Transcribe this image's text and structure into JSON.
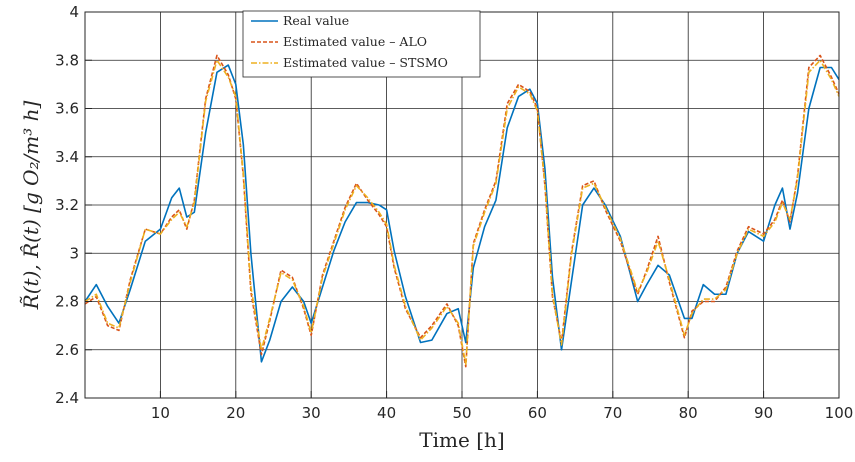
{
  "chart_data": {
    "type": "line",
    "xlabel": "Time [h]",
    "ylabel_html": "R̃(t), R̂(t) [g O₂/m³ h]",
    "xlim": [
      0,
      100
    ],
    "ylim": [
      2.4,
      4.0
    ],
    "xticks": [
      10,
      20,
      30,
      40,
      50,
      60,
      70,
      80,
      90,
      100
    ],
    "xtick_labels": [
      "10",
      "20",
      "30",
      "40",
      "50",
      "60",
      "70",
      "80",
      "90",
      "100"
    ],
    "yticks": [
      2.4,
      2.6,
      2.8,
      3.0,
      3.2,
      3.4,
      3.6,
      3.8,
      4.0
    ],
    "ytick_labels": [
      "2.4",
      "2.6",
      "2.8",
      "3",
      "3.2",
      "3.4",
      "3.6",
      "3.8",
      "4"
    ],
    "grid": true,
    "legend_placement": "top-left",
    "series": [
      {
        "name": "Real value",
        "color": "#0072BD",
        "style": "solid",
        "x": [
          0,
          1.5,
          3,
          4.5,
          6,
          8,
          10,
          11.5,
          12.5,
          13.5,
          14.5,
          16,
          17.5,
          19,
          20,
          21,
          22,
          23.4,
          24.5,
          26,
          27.5,
          29,
          30,
          31.5,
          33,
          34.5,
          36,
          37.5,
          39,
          40,
          41,
          42.5,
          44.5,
          46,
          48,
          49.5,
          50.5,
          51.5,
          53,
          54.5,
          56,
          57.5,
          59,
          60,
          61,
          62,
          63.2,
          64.5,
          66,
          67.5,
          69,
          71,
          73.3,
          74.5,
          76,
          77.5,
          79.5,
          80.5,
          82,
          83.5,
          85,
          86.5,
          88,
          90,
          91.5,
          92.5,
          93.5,
          94.5,
          96,
          97.5,
          99,
          100
        ],
        "y": [
          2.8,
          2.87,
          2.78,
          2.71,
          2.85,
          3.05,
          3.1,
          3.23,
          3.27,
          3.15,
          3.17,
          3.5,
          3.75,
          3.78,
          3.7,
          3.45,
          3.0,
          2.55,
          2.64,
          2.8,
          2.86,
          2.8,
          2.71,
          2.86,
          3.01,
          3.13,
          3.21,
          3.21,
          3.2,
          3.18,
          3.01,
          2.82,
          2.63,
          2.64,
          2.75,
          2.77,
          2.63,
          2.94,
          3.11,
          3.22,
          3.52,
          3.65,
          3.68,
          3.62,
          3.35,
          2.9,
          2.6,
          2.88,
          3.2,
          3.27,
          3.2,
          3.07,
          2.8,
          2.87,
          2.95,
          2.91,
          2.73,
          2.73,
          2.87,
          2.83,
          2.83,
          3.0,
          3.09,
          3.05,
          3.2,
          3.27,
          3.1,
          3.25,
          3.6,
          3.77,
          3.77,
          3.72
        ]
      },
      {
        "name": "Estimated value  –  ALO",
        "color": "#D95319",
        "style": "dashed",
        "x": [
          0,
          1.5,
          3,
          4.5,
          6,
          8,
          10,
          11.5,
          12.5,
          13.5,
          14.5,
          16,
          17.5,
          19,
          20,
          21,
          22,
          23.4,
          24.5,
          26,
          27.5,
          29,
          30,
          31.5,
          33,
          34.5,
          36,
          37.5,
          39,
          40,
          41,
          42.5,
          44.5,
          46,
          48,
          49.5,
          50.5,
          51.5,
          53,
          54.5,
          56,
          57.5,
          59,
          60,
          61,
          62,
          63.2,
          64.5,
          66,
          67.5,
          69,
          71,
          73.3,
          74.5,
          76,
          77.5,
          79.5,
          80.5,
          82,
          83.5,
          85,
          86.5,
          88,
          90,
          91.5,
          92.5,
          93.5,
          94.5,
          96,
          97.5,
          99,
          100
        ],
        "y": [
          2.79,
          2.82,
          2.7,
          2.68,
          2.89,
          3.1,
          3.08,
          3.15,
          3.18,
          3.1,
          3.22,
          3.64,
          3.82,
          3.74,
          3.64,
          3.32,
          2.84,
          2.58,
          2.72,
          2.93,
          2.9,
          2.77,
          2.66,
          2.91,
          3.05,
          3.19,
          3.29,
          3.22,
          3.16,
          3.11,
          2.94,
          2.77,
          2.65,
          2.7,
          2.79,
          2.7,
          2.53,
          3.04,
          3.18,
          3.3,
          3.62,
          3.7,
          3.67,
          3.6,
          3.28,
          2.82,
          2.63,
          3.0,
          3.28,
          3.3,
          3.18,
          3.05,
          2.83,
          2.93,
          3.07,
          2.88,
          2.65,
          2.76,
          2.8,
          2.8,
          2.86,
          3.01,
          3.11,
          3.08,
          3.14,
          3.22,
          3.13,
          3.32,
          3.77,
          3.82,
          3.73,
          3.66
        ]
      },
      {
        "name": "Estimated value  –  STSMO",
        "color": "#EDB120",
        "style": "dashdot",
        "x": [
          0,
          1.5,
          3,
          4.5,
          6,
          8,
          10,
          11.5,
          12.5,
          13.5,
          14.5,
          16,
          17.5,
          19,
          20,
          21,
          22,
          23.4,
          24.5,
          26,
          27.5,
          29,
          30,
          31.5,
          33,
          34.5,
          36,
          37.5,
          39,
          40,
          41,
          42.5,
          44.5,
          46,
          48,
          49.5,
          50.5,
          51.5,
          53,
          54.5,
          56,
          57.5,
          59,
          60,
          61,
          62,
          63.2,
          64.5,
          66,
          67.5,
          69,
          71,
          73.3,
          74.5,
          76,
          77.5,
          79.5,
          80.5,
          82,
          83.5,
          85,
          86.5,
          88,
          90,
          91.5,
          92.5,
          93.5,
          94.5,
          96,
          97.5,
          99,
          100
        ],
        "y": [
          2.8,
          2.83,
          2.71,
          2.69,
          2.88,
          3.1,
          3.08,
          3.14,
          3.17,
          3.11,
          3.21,
          3.63,
          3.8,
          3.73,
          3.65,
          3.33,
          2.86,
          2.6,
          2.73,
          2.92,
          2.89,
          2.78,
          2.67,
          2.9,
          3.04,
          3.18,
          3.28,
          3.23,
          3.17,
          3.12,
          2.95,
          2.78,
          2.64,
          2.69,
          2.78,
          2.71,
          2.54,
          3.03,
          3.17,
          3.29,
          3.6,
          3.69,
          3.66,
          3.59,
          3.29,
          2.83,
          2.62,
          2.99,
          3.27,
          3.29,
          3.19,
          3.06,
          2.84,
          2.92,
          3.05,
          2.89,
          2.66,
          2.75,
          2.81,
          2.81,
          2.85,
          3.0,
          3.1,
          3.07,
          3.13,
          3.21,
          3.14,
          3.31,
          3.75,
          3.8,
          3.72,
          3.65
        ]
      }
    ]
  }
}
